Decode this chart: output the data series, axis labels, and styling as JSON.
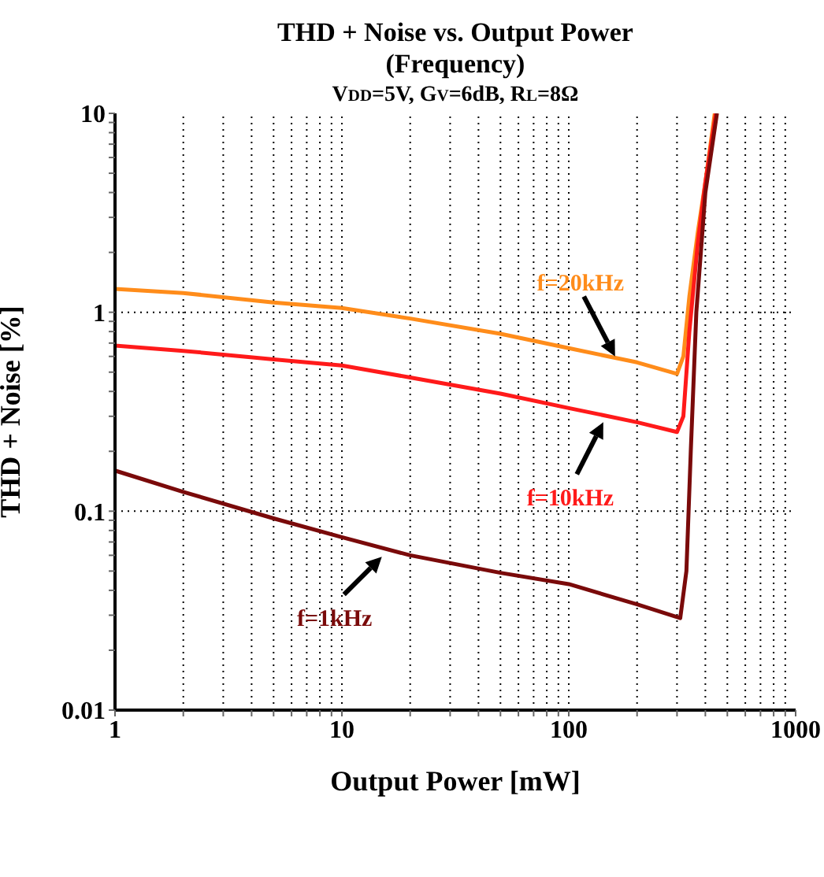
{
  "chart_data": {
    "type": "line",
    "title": "THD + Noise vs. Output Power\n(Frequency)",
    "subtitle": "V$_{DD}$=5V, G$_{V}$=6dB, R$_{L}$=8Ω",
    "xlabel": "Output Power [mW]",
    "ylabel": "THD + Noise [%]",
    "log": "xy",
    "grid": true,
    "line_style": "solid",
    "xlim": [
      1,
      1000
    ],
    "ylim": [
      0.01,
      10
    ],
    "xticks": [
      1,
      {
        "value": 2,
        "label": null
      },
      {
        "value": 3,
        "label": null
      },
      {
        "value": 4,
        "label": null
      },
      {
        "value": 5,
        "label": null
      },
      {
        "value": 6,
        "label": null
      },
      {
        "value": 7,
        "label": null
      },
      {
        "value": 8,
        "label": null
      },
      {
        "value": 9,
        "label": null
      },
      10,
      {
        "value": 20,
        "label": null
      },
      {
        "value": 30,
        "label": null
      },
      {
        "value": 40,
        "label": null
      },
      {
        "value": 50,
        "label": null
      },
      {
        "value": 60,
        "label": null
      },
      {
        "value": 70,
        "label": null
      },
      {
        "value": 80,
        "label": null
      },
      {
        "value": 90,
        "label": null
      },
      100,
      {
        "value": 200,
        "label": null
      },
      {
        "value": 300,
        "label": null
      },
      {
        "value": 400,
        "label": null
      },
      {
        "value": 500,
        "label": null
      },
      {
        "value": 600,
        "label": null
      },
      {
        "value": 700,
        "label": null
      },
      {
        "value": 800,
        "label": null
      },
      {
        "value": 900,
        "label": null
      },
      1000
    ],
    "yticks": [
      0.01,
      {
        "value": 0.02,
        "label": null
      },
      {
        "value": 0.03,
        "label": null
      },
      {
        "value": 0.04,
        "label": null
      },
      {
        "value": 0.05,
        "label": null
      },
      {
        "value": 0.06,
        "label": null
      },
      {
        "value": 0.07,
        "label": null
      },
      {
        "value": 0.08,
        "label": null
      },
      {
        "value": 0.09,
        "label": null
      },
      0.1,
      {
        "value": 0.2,
        "label": null
      },
      {
        "value": 0.3,
        "label": null
      },
      {
        "value": 0.4,
        "label": null
      },
      {
        "value": 0.5,
        "label": null
      },
      {
        "value": 0.6,
        "label": null
      },
      {
        "value": 0.7,
        "label": null
      },
      {
        "value": 0.8,
        "label": null
      },
      {
        "value": 0.9,
        "label": null
      },
      1,
      {
        "value": 2,
        "label": null
      },
      {
        "value": 3,
        "label": null
      },
      {
        "value": 4,
        "label": null
      },
      {
        "value": 5,
        "label": null
      },
      {
        "value": 6,
        "label": null
      },
      {
        "value": 7,
        "label": null
      },
      {
        "value": 8,
        "label": null
      },
      {
        "value": 9,
        "label": null
      },
      10
    ],
    "series": [
      {
        "color": "#ff8c1a",
        "x": [
          1,
          2,
          5,
          10,
          20,
          50,
          100,
          200,
          300,
          320,
          340,
          370,
          400,
          440
        ],
        "values": [
          1.31,
          1.25,
          1.12,
          1.05,
          0.93,
          0.78,
          0.66,
          0.56,
          0.49,
          0.6,
          1.2,
          2.5,
          4.5,
          10
        ]
      },
      {
        "color": "#ff1a1a",
        "x": [
          1,
          2,
          5,
          10,
          20,
          50,
          100,
          200,
          300,
          320,
          340,
          370,
          400,
          445
        ],
        "values": [
          0.68,
          0.64,
          0.58,
          0.54,
          0.47,
          0.39,
          0.33,
          0.28,
          0.25,
          0.3,
          0.8,
          2.2,
          4.5,
          10
        ]
      },
      {
        "color": "#7a0a0a",
        "x": [
          1,
          2,
          5,
          10,
          20,
          50,
          100,
          200,
          310,
          330,
          345,
          365,
          400,
          450
        ],
        "values": [
          0.16,
          0.125,
          0.092,
          0.074,
          0.06,
          0.049,
          0.043,
          0.034,
          0.029,
          0.05,
          0.2,
          1,
          4,
          10
        ]
      }
    ],
    "annotations": [
      {
        "text": "f=20kHz",
        "x": 160,
        "y": 0.6
      },
      {
        "text": "f=10kHz",
        "x": 142,
        "y": 0.28
      },
      {
        "text": "f=1kHz",
        "x": 15,
        "y": 0.059
      }
    ]
  }
}
